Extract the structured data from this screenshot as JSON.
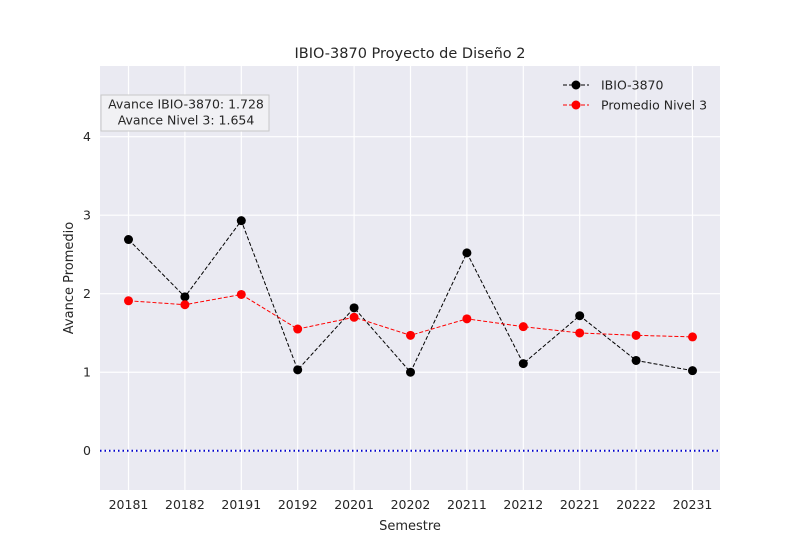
{
  "chart_data": {
    "type": "line",
    "title": "IBIO-3870 Proyecto de Diseño 2",
    "xlabel": "Semestre",
    "ylabel": "Avance Promedio",
    "categories": [
      "20181",
      "20182",
      "20191",
      "20192",
      "20201",
      "20202",
      "20211",
      "20212",
      "20221",
      "20222",
      "20231"
    ],
    "ylim": [
      -0.5,
      4.9
    ],
    "yticks": [
      0,
      1,
      2,
      3,
      4
    ],
    "grid": true,
    "legend_position": "top-right",
    "series": [
      {
        "name": "IBIO-3870",
        "color": "#000000",
        "linestyle": "dashed",
        "values": [
          2.69,
          1.96,
          2.93,
          1.03,
          1.82,
          1.0,
          2.52,
          1.11,
          1.72,
          1.15,
          1.02
        ]
      },
      {
        "name": "Promedio Nivel 3",
        "color": "#ff0000",
        "linestyle": "dashed",
        "values": [
          1.91,
          1.86,
          1.99,
          1.55,
          1.7,
          1.47,
          1.68,
          1.58,
          1.5,
          1.47,
          1.45
        ]
      }
    ],
    "reference_line": {
      "y": 0,
      "color": "#0000cc",
      "style": "dotted"
    },
    "annotation": {
      "line1": "Avance IBIO-3870: 1.728",
      "line2": "Avance Nivel 3: 1.654"
    }
  }
}
